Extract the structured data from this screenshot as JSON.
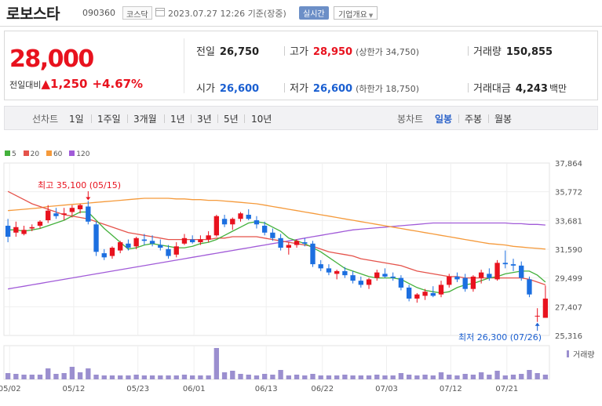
{
  "header": {
    "name": "로보스타",
    "code": "090360",
    "market": "코스닥",
    "datetime": "2023.07.27 12:26 기준(장중)",
    "realtime_label": "실시간",
    "overview_label": "기업개요"
  },
  "quote": {
    "price": "28,000",
    "change_label": "전일대비",
    "change_symbol": "▲",
    "change": "1,250",
    "change_pct": "+4.67%",
    "prev_label": "전일",
    "prev": "26,750",
    "high_label": "고가",
    "high": "28,950",
    "upper_limit_label": "(상한가 34,750)",
    "volume_label": "거래량",
    "volume": "150,855",
    "open_label": "시가",
    "open": "26,600",
    "low_label": "저가",
    "low": "26,600",
    "lower_limit_label": "(하한가 18,750)",
    "amount_label": "거래대금",
    "amount": "4,243",
    "amount_unit": "백만"
  },
  "toolbar": {
    "line_chart_label": "선차트",
    "periods": [
      "1일",
      "1주일",
      "3개월",
      "1년",
      "3년",
      "5년",
      "10년"
    ],
    "candle_chart_label": "봉차트",
    "candle_periods": [
      "일봉",
      "주봉",
      "월봉"
    ],
    "selected_candle": "일봉"
  },
  "colors": {
    "up": "#e8121e",
    "down": "#1c6fe0",
    "ma5": "#44b13c",
    "ma20": "#e5534b",
    "ma60": "#f59a3b",
    "ma120": "#a15bd8"
  },
  "chart_data": {
    "type": "candlestick",
    "legend": [
      "5",
      "20",
      "60",
      "120"
    ],
    "yticks": [
      "37,864",
      "35,772",
      "33,681",
      "31,590",
      "29,499",
      "27,407",
      "25,316"
    ],
    "ylim": [
      25316,
      37864
    ],
    "xticks": [
      "05/02",
      "05/12",
      "05/23",
      "06/01",
      "06/13",
      "06/22",
      "07/03",
      "07/12",
      "07/21"
    ],
    "max_annotation": "최고 35,100 (05/15)",
    "min_annotation": "최저 26,300 (07/26)",
    "volume_label": "거래량",
    "candles": [
      [
        33300,
        33800,
        32100,
        32500
      ],
      [
        32800,
        33600,
        32500,
        33200
      ],
      [
        32700,
        33300,
        32600,
        33000
      ],
      [
        33100,
        33400,
        32900,
        33200
      ],
      [
        33300,
        33700,
        33100,
        33600
      ],
      [
        33700,
        34800,
        33500,
        34400
      ],
      [
        34200,
        34600,
        33800,
        34000
      ],
      [
        34100,
        34600,
        33700,
        34200
      ],
      [
        34300,
        34800,
        33900,
        34600
      ],
      [
        34500,
        34900,
        34200,
        34800
      ],
      [
        34700,
        35100,
        33400,
        33600
      ],
      [
        33400,
        33600,
        31100,
        31400
      ],
      [
        31300,
        31600,
        30800,
        31000
      ],
      [
        31100,
        31800,
        30900,
        31700
      ],
      [
        31500,
        32200,
        31300,
        32100
      ],
      [
        32000,
        32300,
        31500,
        31700
      ],
      [
        31800,
        32500,
        31600,
        32400
      ],
      [
        32300,
        32700,
        31900,
        32200
      ],
      [
        32200,
        32600,
        31800,
        32000
      ],
      [
        31900,
        32300,
        31500,
        31700
      ],
      [
        31600,
        31900,
        30900,
        31100
      ],
      [
        31200,
        32100,
        31000,
        31800
      ],
      [
        32000,
        32700,
        31900,
        32400
      ],
      [
        32300,
        32600,
        32000,
        32100
      ],
      [
        32100,
        32600,
        31900,
        32300
      ],
      [
        32300,
        32900,
        32100,
        32600
      ],
      [
        32600,
        34100,
        32500,
        34000
      ],
      [
        33800,
        34100,
        33200,
        33400
      ],
      [
        33400,
        33900,
        33000,
        33800
      ],
      [
        33800,
        34300,
        33600,
        34200
      ],
      [
        34100,
        34500,
        33700,
        33800
      ],
      [
        33700,
        34000,
        33100,
        33400
      ],
      [
        33300,
        33600,
        32600,
        32800
      ],
      [
        32800,
        33100,
        32200,
        32400
      ],
      [
        32400,
        32700,
        31500,
        31700
      ],
      [
        31700,
        32100,
        31200,
        31900
      ],
      [
        31900,
        32300,
        31700,
        32200
      ],
      [
        32100,
        32400,
        31800,
        32000
      ],
      [
        32000,
        32200,
        30300,
        30500
      ],
      [
        30500,
        30800,
        30000,
        30200
      ],
      [
        30200,
        30500,
        29700,
        29900
      ],
      [
        29800,
        30100,
        29400,
        30000
      ],
      [
        30000,
        30300,
        29500,
        29700
      ],
      [
        29700,
        30000,
        29100,
        29300
      ],
      [
        29300,
        29600,
        28800,
        29000
      ],
      [
        29000,
        29500,
        28700,
        29400
      ],
      [
        29500,
        30100,
        29300,
        29900
      ],
      [
        29800,
        30200,
        29500,
        29600
      ],
      [
        29600,
        29900,
        29300,
        29500
      ],
      [
        29500,
        29700,
        28600,
        28800
      ],
      [
        28800,
        29000,
        27800,
        28000
      ],
      [
        28000,
        28400,
        27700,
        28300
      ],
      [
        28200,
        28700,
        27900,
        28500
      ],
      [
        28400,
        28900,
        28100,
        28200
      ],
      [
        28300,
        29300,
        28100,
        29000
      ],
      [
        29000,
        29800,
        28800,
        29600
      ],
      [
        29600,
        29900,
        29200,
        29400
      ],
      [
        29500,
        29800,
        28500,
        28700
      ],
      [
        28700,
        29700,
        28500,
        29600
      ],
      [
        29500,
        30100,
        29100,
        29900
      ],
      [
        29800,
        30200,
        29300,
        29500
      ],
      [
        29400,
        30800,
        29300,
        30600
      ],
      [
        30600,
        31500,
        30200,
        30500
      ],
      [
        30500,
        30900,
        30000,
        30400
      ],
      [
        30400,
        30700,
        29300,
        29500
      ],
      [
        29400,
        29600,
        28100,
        28300
      ],
      [
        26700,
        27300,
        26300,
        26750
      ],
      [
        26600,
        28950,
        26600,
        28000
      ]
    ],
    "volumes": [
      8,
      7,
      6,
      6,
      6,
      14,
      7,
      8,
      16,
      9,
      14,
      6,
      5,
      5,
      5,
      5,
      6,
      5,
      5,
      5,
      5,
      5,
      6,
      5,
      5,
      5,
      40,
      9,
      11,
      7,
      6,
      5,
      7,
      6,
      12,
      5,
      6,
      5,
      7,
      5,
      5,
      5,
      6,
      5,
      5,
      5,
      6,
      5,
      5,
      8,
      6,
      5,
      6,
      5,
      9,
      6,
      5,
      7,
      6,
      9,
      6,
      11,
      5,
      6,
      7,
      12,
      8,
      6
    ],
    "ma5": [
      33000,
      33000,
      32900,
      33000,
      33100,
      33300,
      33500,
      33700,
      34000,
      34300,
      34300,
      33700,
      33100,
      32600,
      32100,
      31600,
      31700,
      31900,
      32000,
      31900,
      31800,
      31700,
      31700,
      31800,
      32000,
      32100,
      32300,
      32600,
      32900,
      33200,
      33500,
      33600,
      33500,
      33200,
      32900,
      32400,
      32200,
      32000,
      31700,
      31400,
      31000,
      30600,
      30200,
      30000,
      29800,
      29600,
      29500,
      29500,
      29500,
      29400,
      29100,
      28800,
      28600,
      28500,
      28400,
      28500,
      28800,
      29000,
      29100,
      29300,
      29500,
      29600,
      29800,
      29900,
      30000,
      30000,
      29700,
      29200
    ],
    "ma20": [
      35800,
      35500,
      35200,
      34900,
      34700,
      34500,
      34300,
      34100,
      34000,
      33900,
      33800,
      33600,
      33400,
      33200,
      33000,
      32800,
      32700,
      32600,
      32500,
      32400,
      32300,
      32300,
      32300,
      32300,
      32300,
      32300,
      32400,
      32400,
      32500,
      32500,
      32500,
      32500,
      32400,
      32300,
      32200,
      32100,
      32000,
      31900,
      31800,
      31600,
      31400,
      31300,
      31200,
      31100,
      30900,
      30800,
      30700,
      30600,
      30500,
      30400,
      30200,
      30000,
      29900,
      29800,
      29700,
      29600,
      29600,
      29500,
      29500,
      29500,
      29500,
      29500,
      29500,
      29500,
      29500,
      29400,
      29200,
      29000
    ],
    "ma60": [
      34400,
      34450,
      34500,
      34550,
      34600,
      34700,
      34750,
      34800,
      34850,
      34900,
      34950,
      35000,
      35050,
      35100,
      35150,
      35200,
      35250,
      35300,
      35300,
      35300,
      35300,
      35250,
      35250,
      35200,
      35200,
      35150,
      35150,
      35100,
      35050,
      35000,
      34950,
      34900,
      34800,
      34700,
      34600,
      34500,
      34400,
      34300,
      34200,
      34100,
      34000,
      33900,
      33800,
      33700,
      33600,
      33500,
      33400,
      33300,
      33200,
      33100,
      33000,
      32900,
      32800,
      32700,
      32600,
      32500,
      32400,
      32300,
      32200,
      32100,
      32000,
      31950,
      31900,
      31800,
      31750,
      31700,
      31650,
      31600
    ],
    "ma120": [
      28700,
      28800,
      28900,
      29000,
      29100,
      29200,
      29300,
      29400,
      29500,
      29600,
      29700,
      29800,
      29900,
      30000,
      30100,
      30200,
      30300,
      30400,
      30500,
      30600,
      30700,
      30800,
      30900,
      31000,
      31100,
      31200,
      31300,
      31400,
      31500,
      31600,
      31700,
      31800,
      31900,
      32000,
      32100,
      32200,
      32300,
      32400,
      32500,
      32600,
      32700,
      32800,
      32900,
      33000,
      33050,
      33100,
      33150,
      33200,
      33250,
      33300,
      33350,
      33400,
      33450,
      33500,
      33500,
      33500,
      33500,
      33500,
      33500,
      33500,
      33500,
      33500,
      33500,
      33450,
      33450,
      33400,
      33400,
      33350
    ]
  }
}
